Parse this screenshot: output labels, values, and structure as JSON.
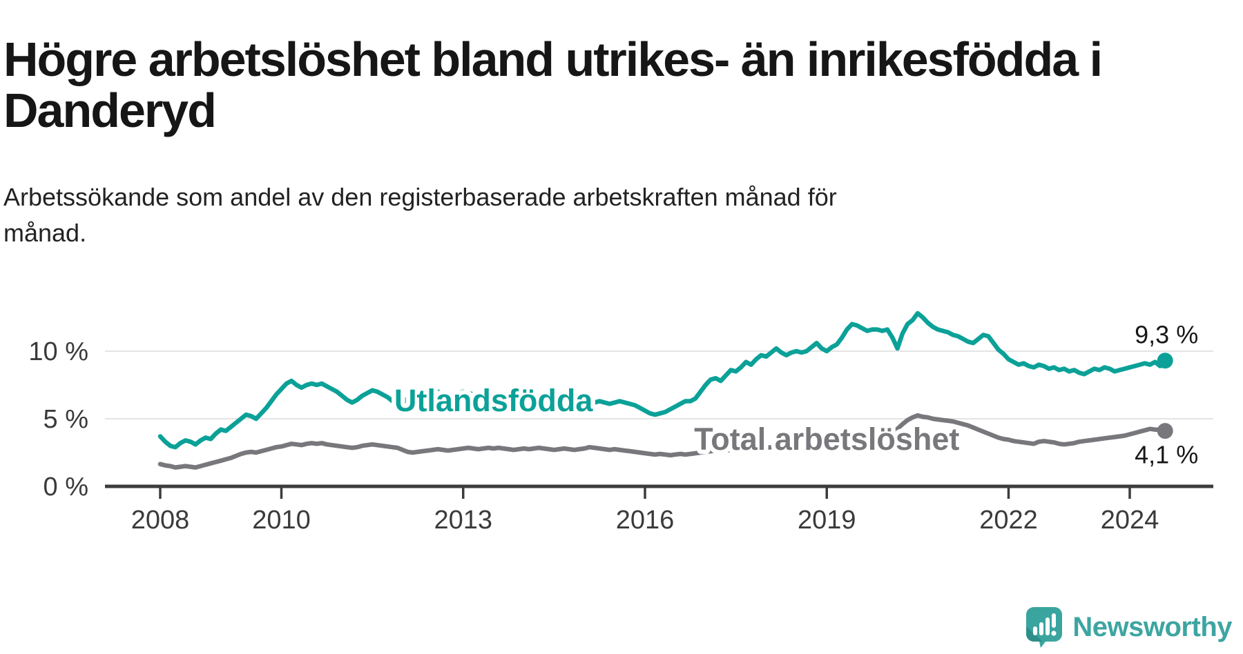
{
  "header": {
    "title": "Högre arbetslöshet bland utrikes- än inrikesfödda i Danderyd",
    "subtitle": "Arbetssökande som andel av den registerbaserade arbetskraften månad för månad."
  },
  "chart_data": {
    "type": "line",
    "title": "Högre arbetslöshet bland utrikes- än inrikesfödda i Danderyd",
    "x_unit": "month",
    "x_start_year": 2008,
    "x_end": "2024-08",
    "ylim": [
      0,
      13.5
    ],
    "grid": "horizontal",
    "x_ticks": [
      {
        "label": "2008",
        "year": 2008
      },
      {
        "label": "2010",
        "year": 2010
      },
      {
        "label": "2013",
        "year": 2013
      },
      {
        "label": "2016",
        "year": 2016
      },
      {
        "label": "2019",
        "year": 2019
      },
      {
        "label": "2022",
        "year": 2022
      },
      {
        "label": "2024",
        "year": 2024
      }
    ],
    "y_ticks": [
      {
        "label": "0 %",
        "value": 0
      },
      {
        "label": "5 %",
        "value": 5
      },
      {
        "label": "10 %",
        "value": 10
      }
    ],
    "series": [
      {
        "name": "Utlandsfödda",
        "color": "#0ba198",
        "end_label": "9,3 %",
        "end_label_position": "above",
        "label_anchor": {
          "year": 2013.5,
          "pct": 5.56
        },
        "values": [
          3.7,
          3.3,
          3.0,
          2.9,
          3.2,
          3.4,
          3.3,
          3.1,
          3.4,
          3.6,
          3.5,
          3.9,
          4.2,
          4.1,
          4.4,
          4.7,
          5.0,
          5.3,
          5.2,
          5.0,
          5.4,
          5.8,
          6.3,
          6.8,
          7.2,
          7.6,
          7.8,
          7.5,
          7.3,
          7.5,
          7.6,
          7.5,
          7.6,
          7.4,
          7.2,
          7.0,
          6.7,
          6.4,
          6.2,
          6.4,
          6.7,
          6.9,
          7.1,
          7.0,
          6.8,
          6.6,
          6.3,
          6.1,
          6.2,
          6.5,
          6.4,
          6.6,
          6.8,
          6.7,
          6.9,
          7.0,
          6.8,
          6.7,
          6.8,
          6.9,
          7.0,
          6.9,
          6.8,
          6.9,
          7.0,
          6.9,
          6.8,
          6.7,
          6.6,
          6.5,
          6.4,
          6.3,
          6.4,
          6.5,
          6.4,
          6.3,
          6.2,
          6.3,
          6.4,
          6.3,
          6.2,
          6.3,
          6.4,
          6.5,
          6.4,
          6.3,
          6.2,
          6.3,
          6.2,
          6.1,
          6.2,
          6.3,
          6.2,
          6.1,
          6.0,
          5.8,
          5.6,
          5.4,
          5.3,
          5.4,
          5.5,
          5.7,
          5.9,
          6.1,
          6.3,
          6.3,
          6.5,
          7.0,
          7.5,
          7.9,
          8.0,
          7.8,
          8.2,
          8.6,
          8.5,
          8.8,
          9.2,
          9.0,
          9.4,
          9.7,
          9.6,
          9.9,
          10.2,
          9.9,
          9.7,
          9.9,
          10.0,
          9.9,
          10.0,
          10.3,
          10.6,
          10.2,
          10.0,
          10.3,
          10.5,
          11.0,
          11.6,
          12.0,
          11.9,
          11.7,
          11.5,
          11.6,
          11.6,
          11.5,
          11.6,
          11.0,
          10.2,
          11.3,
          12.0,
          12.3,
          12.8,
          12.5,
          12.1,
          11.8,
          11.6,
          11.5,
          11.4,
          11.2,
          11.1,
          10.9,
          10.7,
          10.6,
          10.9,
          11.2,
          11.1,
          10.6,
          10.1,
          9.8,
          9.4,
          9.2,
          9.0,
          9.1,
          8.9,
          8.8,
          9.0,
          8.9,
          8.7,
          8.8,
          8.6,
          8.7,
          8.5,
          8.6,
          8.4,
          8.3,
          8.5,
          8.7,
          8.6,
          8.8,
          8.7,
          8.5,
          8.6,
          8.7,
          8.8,
          8.9,
          9.0,
          9.1,
          9.0,
          9.2,
          8.9,
          9.3
        ]
      },
      {
        "name": "Total arbetslöshet",
        "color": "#78777c",
        "end_label": "4,1 %",
        "end_label_position": "below",
        "label_anchor": {
          "year": 2019.0,
          "pct": 2.7
        },
        "values": [
          1.65,
          1.55,
          1.5,
          1.4,
          1.45,
          1.5,
          1.45,
          1.4,
          1.5,
          1.6,
          1.7,
          1.8,
          1.9,
          2.0,
          2.1,
          2.25,
          2.4,
          2.5,
          2.55,
          2.5,
          2.6,
          2.7,
          2.8,
          2.9,
          2.95,
          3.05,
          3.15,
          3.1,
          3.05,
          3.15,
          3.2,
          3.15,
          3.2,
          3.1,
          3.05,
          3.0,
          2.95,
          2.9,
          2.85,
          2.9,
          3.0,
          3.05,
          3.1,
          3.05,
          3.0,
          2.95,
          2.9,
          2.85,
          2.7,
          2.55,
          2.5,
          2.55,
          2.6,
          2.65,
          2.7,
          2.75,
          2.7,
          2.65,
          2.7,
          2.75,
          2.8,
          2.85,
          2.8,
          2.75,
          2.8,
          2.85,
          2.8,
          2.85,
          2.8,
          2.75,
          2.7,
          2.75,
          2.8,
          2.75,
          2.8,
          2.85,
          2.8,
          2.75,
          2.7,
          2.75,
          2.8,
          2.75,
          2.7,
          2.75,
          2.8,
          2.9,
          2.85,
          2.8,
          2.75,
          2.7,
          2.75,
          2.7,
          2.65,
          2.6,
          2.55,
          2.5,
          2.45,
          2.4,
          2.35,
          2.4,
          2.35,
          2.3,
          2.35,
          2.4,
          2.35,
          2.4,
          2.45,
          2.5,
          2.55,
          2.6,
          2.65,
          2.6,
          2.65,
          2.7,
          2.75,
          2.7,
          2.75,
          2.8,
          2.85,
          2.9,
          2.85,
          2.9,
          2.95,
          2.9,
          2.95,
          3.0,
          3.05,
          3.0,
          3.05,
          3.1,
          3.05,
          3.1,
          3.1,
          3.15,
          3.2,
          3.25,
          3.3,
          3.4,
          3.45,
          3.4,
          3.5,
          3.6,
          3.7,
          3.8,
          3.9,
          4.0,
          4.25,
          4.6,
          4.9,
          5.1,
          5.25,
          5.15,
          5.1,
          5.0,
          4.95,
          4.9,
          4.85,
          4.8,
          4.7,
          4.6,
          4.5,
          4.35,
          4.2,
          4.05,
          3.9,
          3.75,
          3.6,
          3.5,
          3.45,
          3.35,
          3.3,
          3.25,
          3.2,
          3.15,
          3.3,
          3.35,
          3.3,
          3.25,
          3.15,
          3.1,
          3.15,
          3.2,
          3.3,
          3.35,
          3.4,
          3.45,
          3.5,
          3.55,
          3.6,
          3.65,
          3.7,
          3.75,
          3.85,
          3.95,
          4.05,
          4.15,
          4.25,
          4.2,
          4.2,
          4.1
        ]
      }
    ]
  },
  "footer": {
    "brand": "Newsworthy"
  },
  "colors": {
    "teal": "#0ba198",
    "gray": "#78777c",
    "grid": "#e4e4e4",
    "axis": "#3c3c3c",
    "text": "#161616",
    "brand_teal": "#3da5a1",
    "brand_fold": "#2e8e89"
  }
}
